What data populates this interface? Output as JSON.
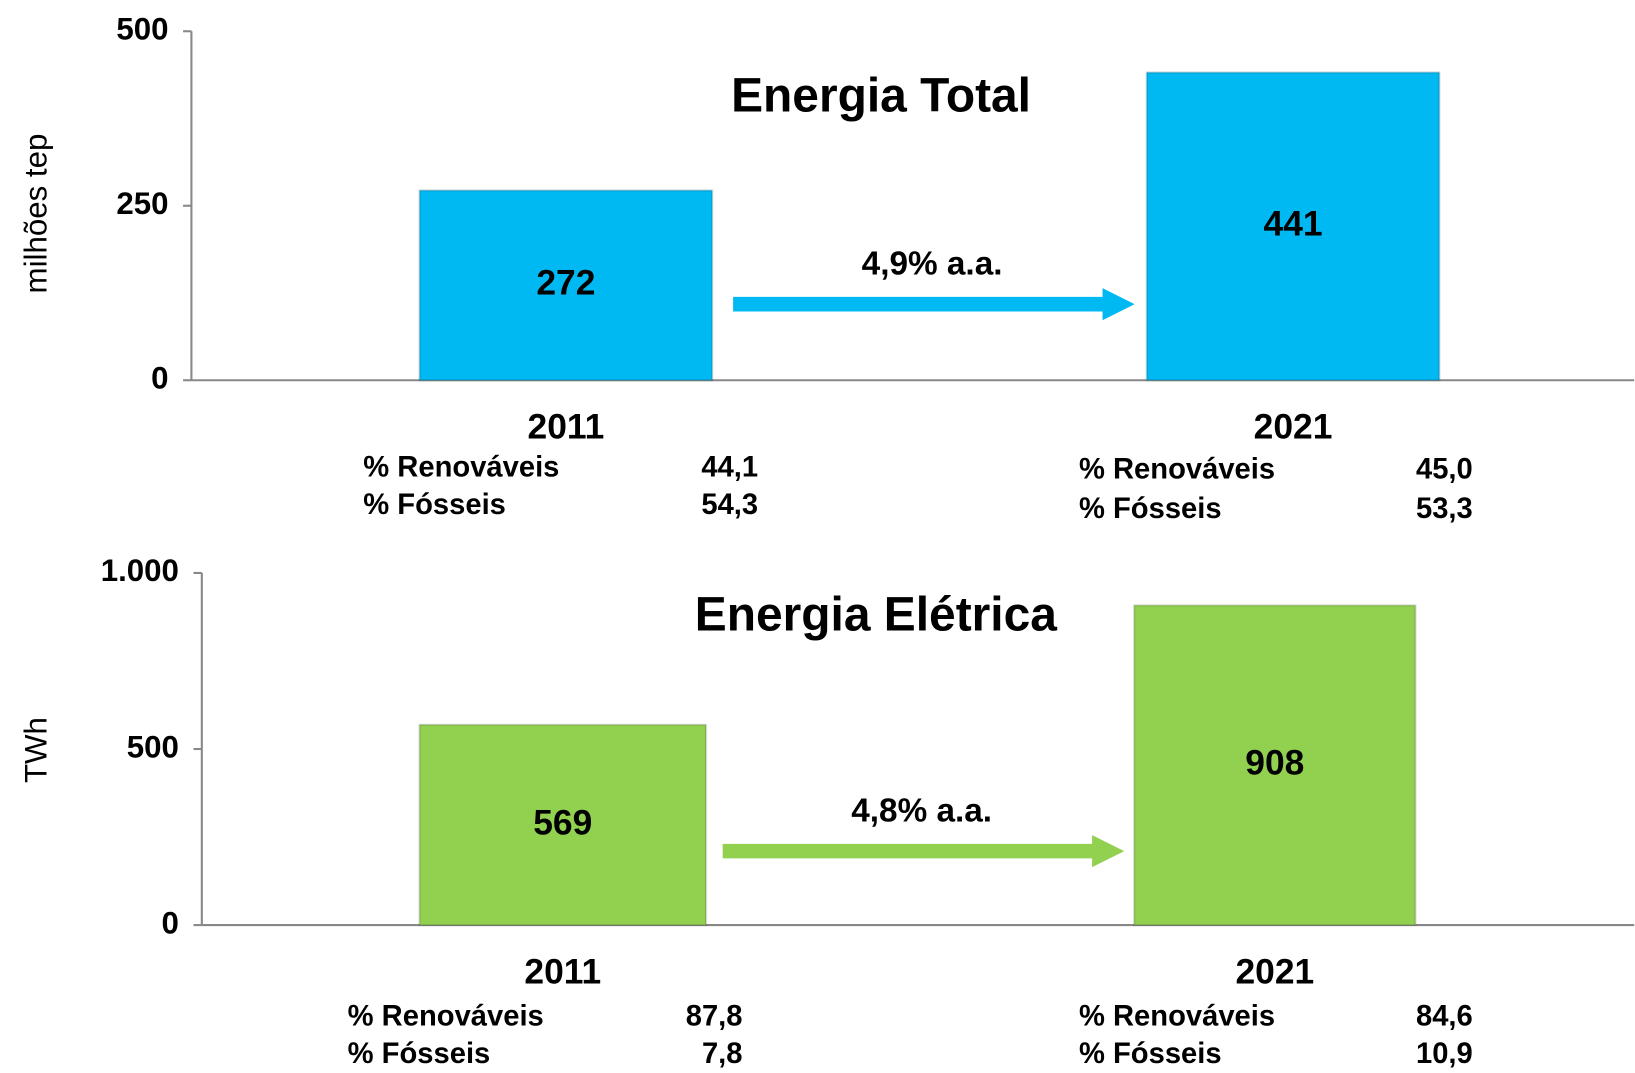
{
  "chart_data": [
    {
      "type": "bar",
      "title": "Energia Total",
      "y_label": "milhões tep",
      "categories": [
        "2011",
        "2021"
      ],
      "values": [
        272,
        441
      ],
      "color": "#00b9f2",
      "ylim": [
        0,
        500
      ],
      "yticks": [
        0,
        250,
        500
      ],
      "grid": false,
      "annotation": "4,9% a.a.",
      "shares": [
        {
          "label": "% Renováveis",
          "values": [
            44.1,
            45.0
          ],
          "value_labels": [
            "44,1",
            "45,0"
          ]
        },
        {
          "label": "% Fósseis",
          "values": [
            54.3,
            53.3
          ],
          "value_labels": [
            "54,3",
            "53,3"
          ]
        }
      ]
    },
    {
      "type": "bar",
      "title": "Energia Elétrica",
      "y_label": "TWh",
      "categories": [
        "2011",
        "2021"
      ],
      "values": [
        569,
        908
      ],
      "color": "#92d050",
      "ylim": [
        0,
        1000
      ],
      "yticks": [
        0,
        500,
        {
          "value": 1000,
          "label": "1.000"
        }
      ],
      "grid": false,
      "annotation": "4,8% a.a.",
      "shares": [
        {
          "label": "% Renováveis",
          "values": [
            87.8,
            84.6
          ],
          "value_labels": [
            "87,8",
            "84,6"
          ]
        },
        {
          "label": "% Fósseis",
          "values": [
            7.8,
            10.9
          ],
          "value_labels": [
            "7,8",
            "10,9"
          ]
        }
      ]
    }
  ]
}
